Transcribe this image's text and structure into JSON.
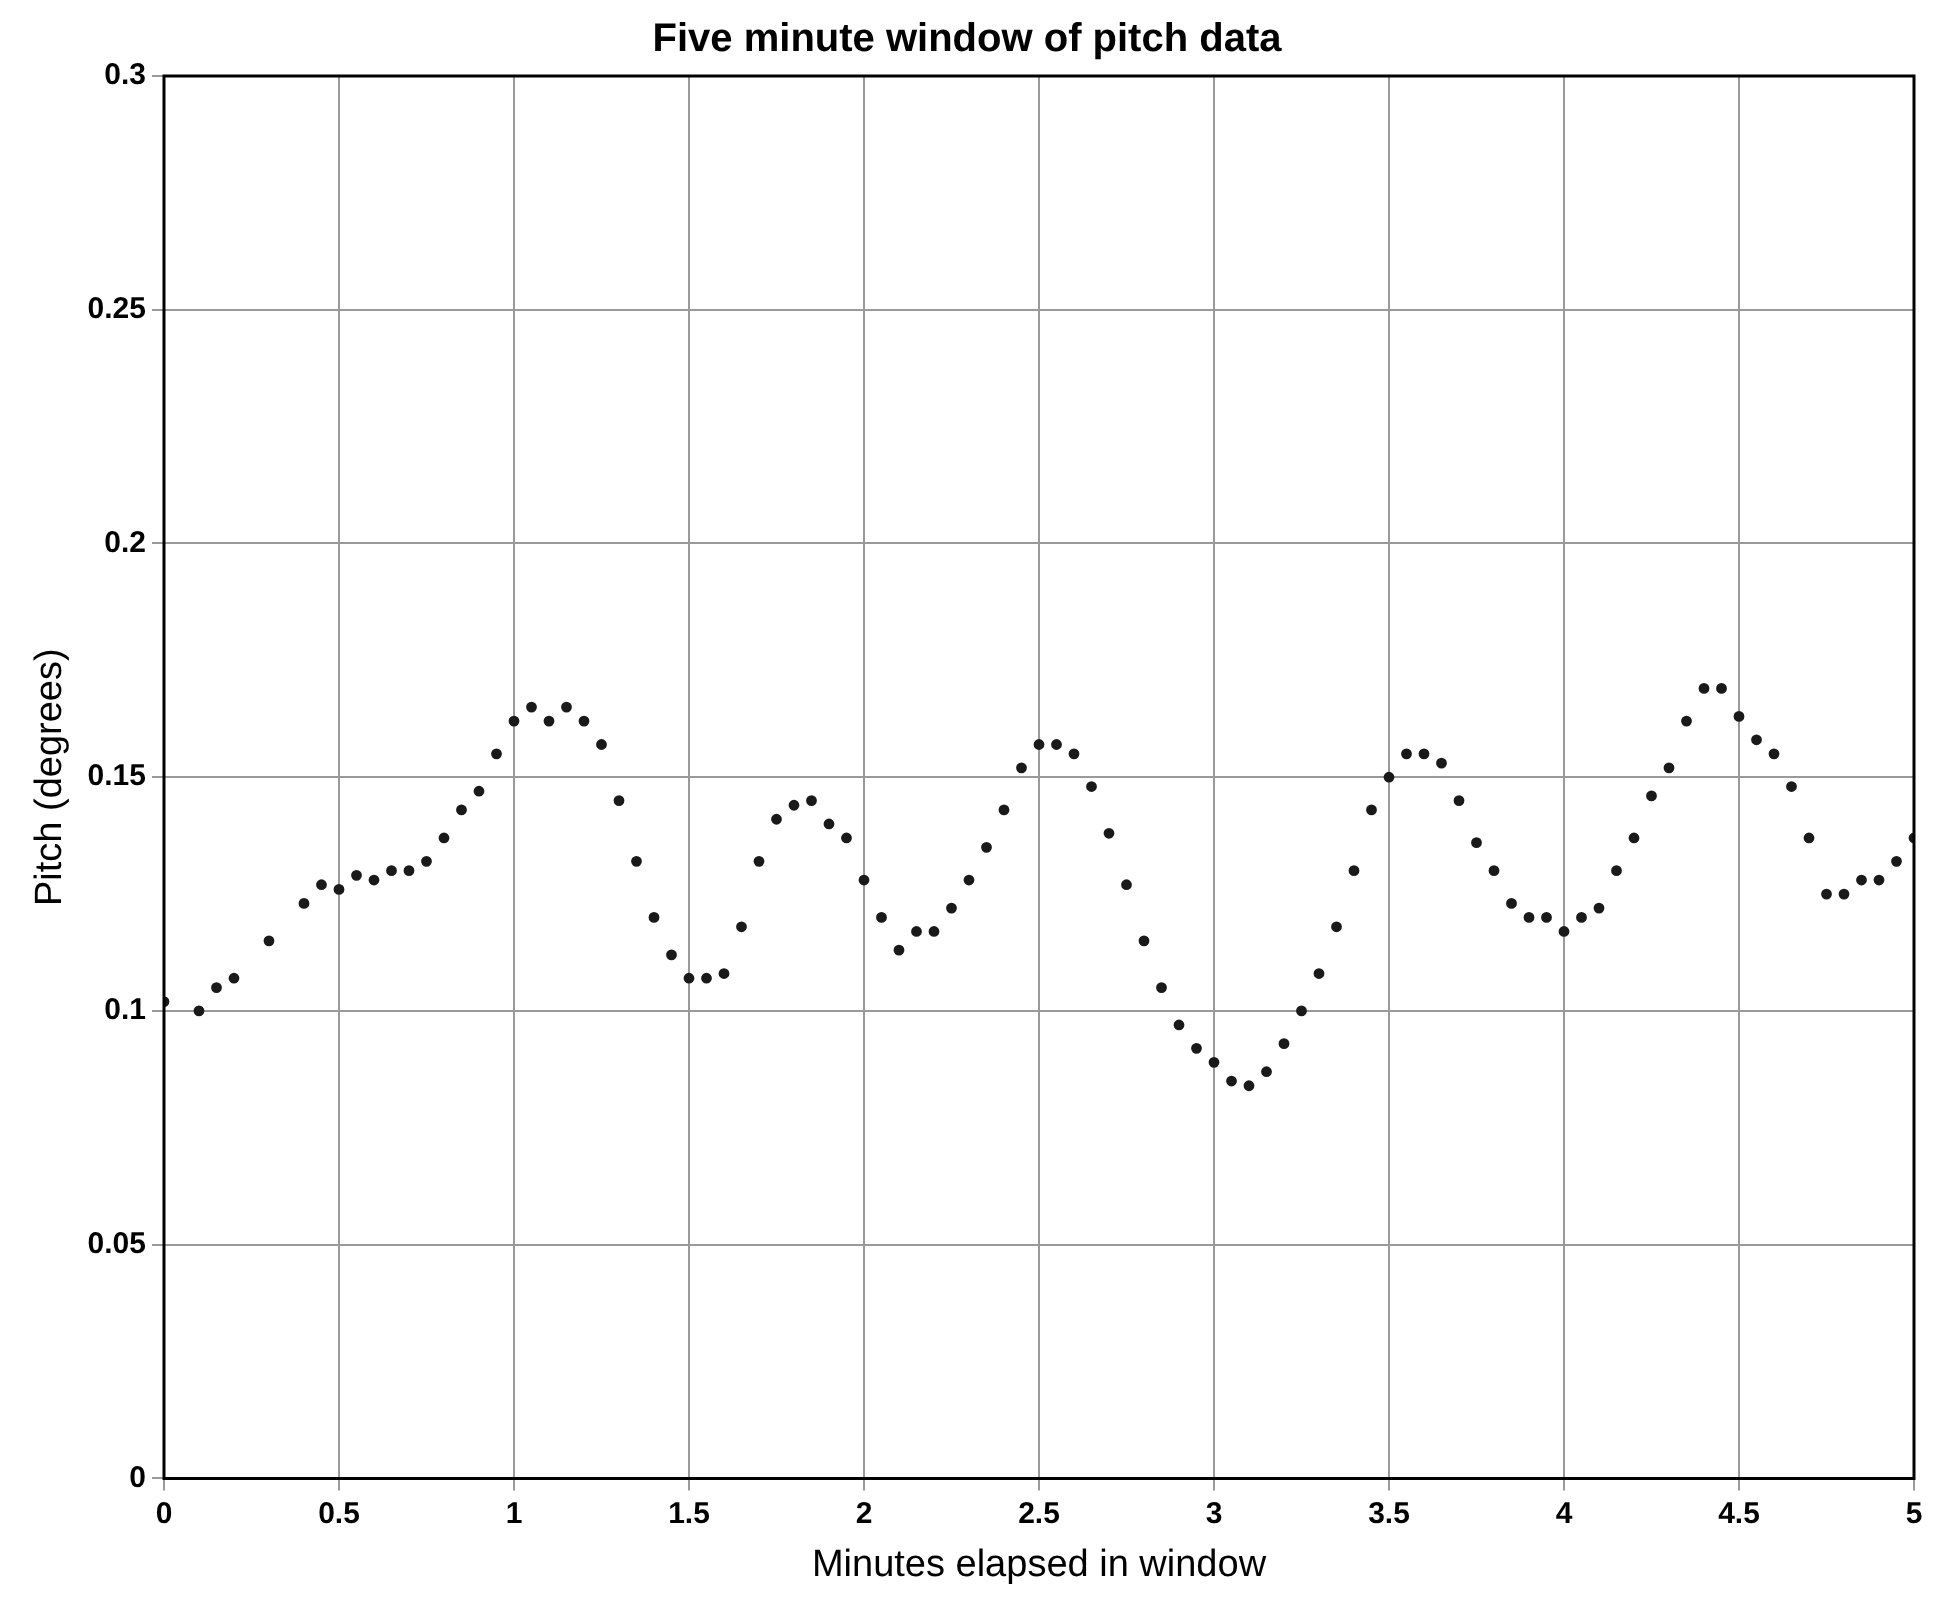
{
  "chart_data": {
    "type": "scatter",
    "title": "Five minute window of pitch data",
    "xlabel": "Minutes elapsed in window",
    "ylabel": "Pitch (degrees)",
    "xlim": [
      0,
      5
    ],
    "xticks": [
      0,
      0.5,
      1,
      1.5,
      2,
      2.5,
      3,
      3.5,
      4,
      4.5,
      5
    ],
    "ylim": [
      0,
      0.3
    ],
    "yticks": [
      0,
      0.05,
      0.1,
      0.15,
      0.2,
      0.25,
      0.3
    ],
    "grid": true,
    "marker": "circle",
    "series": [
      {
        "color": "#1a1a1a",
        "x": [
          0,
          0.1,
          0.15,
          0.2,
          0.3,
          0.4,
          0.45,
          0.5,
          0.55,
          0.6,
          0.65,
          0.7,
          0.75,
          0.8,
          0.85,
          0.9,
          0.95,
          1.0,
          1.05,
          1.1,
          1.15,
          1.2,
          1.25,
          1.3,
          1.35,
          1.4,
          1.45,
          1.5,
          1.55,
          1.6,
          1.65,
          1.7,
          1.75,
          1.8,
          1.85,
          1.9,
          1.95,
          2.0,
          2.05,
          2.1,
          2.15,
          2.2,
          2.25,
          2.3,
          2.35,
          2.4,
          2.45,
          2.5,
          2.55,
          2.6,
          2.65,
          2.7,
          2.75,
          2.8,
          2.85,
          2.9,
          2.95,
          3.0,
          3.05,
          3.1,
          3.15,
          3.2,
          3.25,
          3.3,
          3.35,
          3.4,
          3.45,
          3.5,
          3.55,
          3.6,
          3.65,
          3.7,
          3.75,
          3.8,
          3.85,
          3.9,
          3.95,
          4.0,
          4.05,
          4.1,
          4.15,
          4.2,
          4.25,
          4.3,
          4.35,
          4.4,
          4.45,
          4.5,
          4.55,
          4.6,
          4.65,
          4.7,
          4.75,
          4.8,
          4.85,
          4.9,
          4.95,
          5.0
        ],
        "values": [
          0.102,
          0.1,
          0.105,
          0.107,
          0.115,
          0.123,
          0.127,
          0.126,
          0.129,
          0.128,
          0.13,
          0.13,
          0.132,
          0.137,
          0.143,
          0.147,
          0.155,
          0.162,
          0.165,
          0.162,
          0.165,
          0.162,
          0.157,
          0.145,
          0.132,
          0.12,
          0.112,
          0.107,
          0.107,
          0.108,
          0.118,
          0.132,
          0.141,
          0.144,
          0.145,
          0.14,
          0.137,
          0.128,
          0.12,
          0.113,
          0.117,
          0.117,
          0.122,
          0.128,
          0.135,
          0.143,
          0.152,
          0.157,
          0.157,
          0.155,
          0.148,
          0.138,
          0.127,
          0.115,
          0.105,
          0.097,
          0.092,
          0.089,
          0.085,
          0.084,
          0.087,
          0.093,
          0.1,
          0.108,
          0.118,
          0.13,
          0.143,
          0.15,
          0.155,
          0.155,
          0.153,
          0.145,
          0.136,
          0.13,
          0.123,
          0.12,
          0.12,
          0.117,
          0.12,
          0.122,
          0.13,
          0.137,
          0.146,
          0.152,
          0.162,
          0.169,
          0.169,
          0.163,
          0.158,
          0.155,
          0.148,
          0.137,
          0.125,
          0.125,
          0.128,
          0.128,
          0.132,
          0.137
        ]
      }
    ]
  }
}
